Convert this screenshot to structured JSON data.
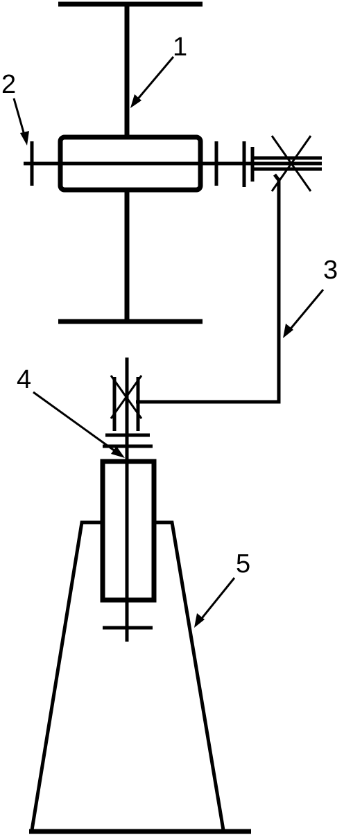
{
  "labels": {
    "l1": "1",
    "l2": "2",
    "l3": "3",
    "l4": "4",
    "l5": "5"
  },
  "colors": {
    "line": "#000000",
    "background": "#ffffff"
  }
}
